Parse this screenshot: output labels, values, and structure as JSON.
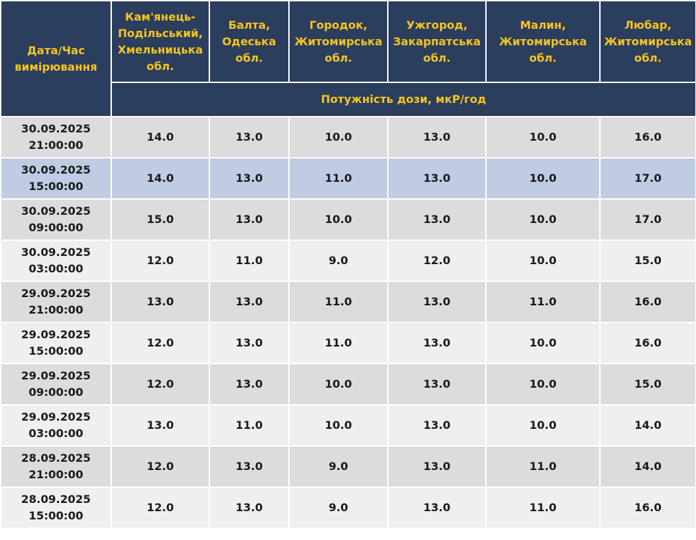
{
  "header": {
    "date_col": "Дата/Час вимірювання",
    "units": "Потужність дози, мкР/год",
    "stations": [
      "Кам'янець-Подільський, Хмельницька обл.",
      "Балта, Одеська обл.",
      "Городок, Житомирська обл.",
      "Ужгород, Закарпатська обл.",
      "Малин, Житомирська обл.",
      "Любар, Житомирська обл."
    ]
  },
  "rows": [
    {
      "date": "30.09.2025",
      "time": "21:00:00",
      "values": [
        "14.0",
        "13.0",
        "10.0",
        "13.0",
        "10.0",
        "16.0"
      ]
    },
    {
      "date": "30.09.2025",
      "time": "15:00:00",
      "values": [
        "14.0",
        "13.0",
        "11.0",
        "13.0",
        "10.0",
        "17.0"
      ]
    },
    {
      "date": "30.09.2025",
      "time": "09:00:00",
      "values": [
        "15.0",
        "13.0",
        "10.0",
        "13.0",
        "10.0",
        "17.0"
      ]
    },
    {
      "date": "30.09.2025",
      "time": "03:00:00",
      "values": [
        "12.0",
        "11.0",
        "9.0",
        "12.0",
        "10.0",
        "15.0"
      ]
    },
    {
      "date": "29.09.2025",
      "time": "21:00:00",
      "values": [
        "13.0",
        "13.0",
        "11.0",
        "13.0",
        "11.0",
        "16.0"
      ]
    },
    {
      "date": "29.09.2025",
      "time": "15:00:00",
      "values": [
        "12.0",
        "13.0",
        "11.0",
        "13.0",
        "10.0",
        "16.0"
      ]
    },
    {
      "date": "29.09.2025",
      "time": "09:00:00",
      "values": [
        "12.0",
        "13.0",
        "10.0",
        "13.0",
        "10.0",
        "15.0"
      ]
    },
    {
      "date": "29.09.2025",
      "time": "03:00:00",
      "values": [
        "13.0",
        "11.0",
        "10.0",
        "13.0",
        "10.0",
        "14.0"
      ]
    },
    {
      "date": "28.09.2025",
      "time": "21:00:00",
      "values": [
        "12.0",
        "13.0",
        "9.0",
        "13.0",
        "11.0",
        "14.0"
      ]
    },
    {
      "date": "28.09.2025",
      "time": "15:00:00",
      "values": [
        "12.0",
        "13.0",
        "9.0",
        "13.0",
        "11.0",
        "16.0"
      ]
    }
  ],
  "colors": {
    "header_bg": "#2c3e5e",
    "header_text": "#f5c51b",
    "row_dark": "#dcdcdc",
    "row_light": "#efefef",
    "row_highlight": "#bfcce3"
  }
}
